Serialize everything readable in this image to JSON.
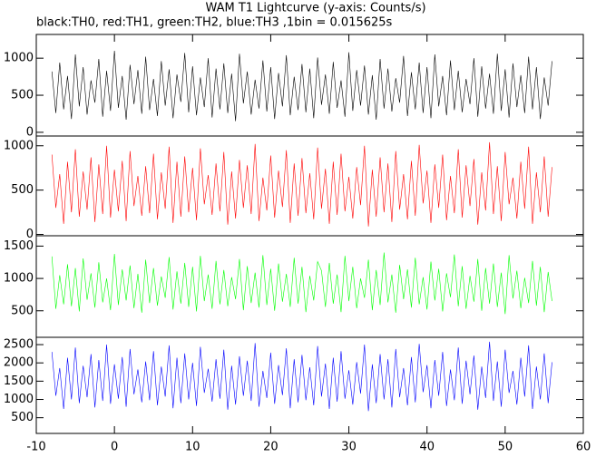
{
  "chart_data": {
    "type": "line",
    "title": "WAM T1 Lightcurve (y-axis: Counts/s)",
    "subtitle": "black:TH0, red:TH1, green:TH2, blue:TH3 ,1bin = 0.015625s",
    "xlim": [
      -10,
      60
    ],
    "xticks": [
      -10,
      0,
      10,
      20,
      30,
      40,
      50,
      60
    ],
    "x": [
      -8,
      -7.5,
      -7,
      -6.5,
      -6,
      -5.5,
      -5,
      -4.5,
      -4,
      -3.5,
      -3,
      -2.5,
      -2,
      -1.5,
      -1,
      -0.5,
      0,
      0.5,
      1,
      1.5,
      2,
      2.5,
      3,
      3.5,
      4,
      4.5,
      5,
      5.5,
      6,
      6.5,
      7,
      7.5,
      8,
      8.5,
      9,
      9.5,
      10,
      10.5,
      11,
      11.5,
      12,
      12.5,
      13,
      13.5,
      14,
      14.5,
      15,
      15.5,
      16,
      16.5,
      17,
      17.5,
      18,
      18.5,
      19,
      19.5,
      20,
      20.5,
      21,
      21.5,
      22,
      22.5,
      23,
      23.5,
      24,
      24.5,
      25,
      25.5,
      26,
      26.5,
      27,
      27.5,
      28,
      28.5,
      29,
      29.5,
      30,
      30.5,
      31,
      31.5,
      32,
      32.5,
      33,
      33.5,
      34,
      34.5,
      35,
      35.5,
      36,
      36.5,
      37,
      37.5,
      38,
      38.5,
      39,
      39.5,
      40,
      40.5,
      41,
      41.5,
      42,
      42.5,
      43,
      43.5,
      44,
      44.5,
      45,
      45.5,
      46,
      46.5,
      47,
      47.5,
      48,
      48.5,
      49,
      49.5,
      50,
      50.5,
      51,
      51.5,
      52,
      52.5,
      53,
      53.5,
      54,
      54.5,
      55,
      55.5,
      56
    ],
    "panels": [
      {
        "color": "#000000",
        "ylim": [
          -50,
          1320
        ],
        "yticks": [
          0,
          500,
          1000
        ],
        "values": [
          820,
          260,
          940,
          310,
          760,
          180,
          1050,
          350,
          880,
          240,
          700,
          400,
          990,
          210,
          830,
          290,
          1100,
          330,
          760,
          170,
          910,
          380,
          840,
          250,
          1020,
          300,
          720,
          220,
          960,
          360,
          850,
          190,
          780,
          410,
          1070,
          270,
          890,
          230,
          740,
          340,
          1000,
          200,
          860,
          310,
          930,
          260,
          790,
          150,
          1060,
          390,
          820,
          240,
          710,
          320,
          970,
          280,
          880,
          180,
          800,
          350,
          1040,
          230,
          750,
          300,
          920,
          270,
          860,
          190,
          1010,
          370,
          780,
          250,
          950,
          330,
          700,
          210,
          1080,
          290,
          840,
          360,
          900,
          240,
          770,
          170,
          990,
          320,
          860,
          280,
          730,
          400,
          1030,
          220,
          810,
          310,
          940,
          260,
          880,
          190,
          1050,
          350,
          760,
          230,
          970,
          300,
          830,
          270,
          720,
          380,
          1000,
          210,
          890,
          320,
          790,
          250,
          1060,
          290,
          850,
          200,
          930,
          340,
          770,
          260,
          1020,
          310,
          880,
          180,
          740,
          360,
          960
        ]
      },
      {
        "color": "#ff0000",
        "ylim": [
          -15,
          1110
        ],
        "yticks": [
          0,
          500,
          1000
        ],
        "values": [
          900,
          300,
          680,
          120,
          820,
          250,
          960,
          200,
          710,
          280,
          870,
          140,
          790,
          230,
          1000,
          190,
          730,
          260,
          830,
          150,
          940,
          320,
          660,
          210,
          770,
          240,
          910,
          170,
          700,
          290,
          990,
          130,
          820,
          200,
          880,
          250,
          750,
          160,
          970,
          340,
          670,
          220,
          800,
          260,
          930,
          110,
          710,
          180,
          840,
          300,
          780,
          230,
          1020,
          150,
          640,
          270,
          890,
          190,
          720,
          310,
          950,
          130,
          800,
          210,
          860,
          240,
          690,
          170,
          980,
          290,
          740,
          120,
          820,
          220,
          910,
          260,
          650,
          180,
          760,
          330,
          1000,
          90,
          730,
          200,
          870,
          250,
          800,
          140,
          940,
          280,
          680,
          170,
          830,
          210,
          1010,
          350,
          720,
          130,
          790,
          300,
          900,
          160,
          660,
          240,
          960,
          190,
          780,
          320,
          850,
          110,
          700,
          270,
          1040,
          230,
          770,
          150,
          930,
          340,
          640,
          180,
          820,
          290,
          990,
          120,
          700,
          250,
          880,
          200,
          760
        ]
      },
      {
        "color": "#00ff00",
        "ylim": [
          90,
          1660
        ],
        "yticks": [
          500,
          1000,
          1500
        ],
        "values": [
          1340,
          530,
          1050,
          600,
          1220,
          570,
          1160,
          490,
          1310,
          670,
          1080,
          550,
          1250,
          630,
          1000,
          510,
          1380,
          590,
          1140,
          660,
          1200,
          540,
          1070,
          470,
          1290,
          620,
          1160,
          580,
          1030,
          700,
          1330,
          520,
          1110,
          610,
          1240,
          560,
          1180,
          490,
          1350,
          650,
          1060,
          530,
          1270,
          600,
          1130,
          570,
          1020,
          680,
          1300,
          510,
          1190,
          620,
          1090,
          550,
          1360,
          590,
          1150,
          500,
          1230,
          640,
          1070,
          560,
          1320,
          610,
          1180,
          480,
          1040,
          660,
          1260,
          1120,
          560,
          1240,
          610,
          1060,
          480,
          1350,
          650,
          1180,
          540,
          1000,
          700,
          1290,
          510,
          1130,
          590,
          1400,
          630,
          1060,
          470,
          1210,
          680,
          1140,
          550,
          1320,
          600,
          1020,
          520,
          1260,
          660,
          1150,
          490,
          1080,
          710,
          1370,
          570,
          1190,
          530,
          1040,
          640,
          1300,
          500,
          1160,
          610,
          1230,
          560,
          1090,
          450,
          1360,
          690,
          1120,
          540,
          1010,
          620,
          1270,
          580,
          1180,
          480,
          1100,
          650
        ]
      },
      {
        "color": "#0000ff",
        "ylim": [
          70,
          2700
        ],
        "yticks": [
          500,
          1000,
          1500,
          2000,
          2500
        ],
        "values": [
          2300,
          1100,
          1860,
          740,
          2140,
          1000,
          2420,
          900,
          1920,
          1060,
          2240,
          780,
          2080,
          960,
          2500,
          880,
          1960,
          1020,
          2160,
          800,
          2380,
          1140,
          1820,
          920,
          2040,
          980,
          2320,
          840,
          1900,
          1080,
          2480,
          760,
          2140,
          900,
          2260,
          1000,
          2000,
          820,
          2440,
          1180,
          1840,
          940,
          2100,
          1020,
          2360,
          720,
          1920,
          860,
          2180,
          1100,
          2060,
          960,
          2540,
          800,
          1780,
          1040,
          2280,
          880,
          1940,
          1120,
          2400,
          760,
          2100,
          920,
          2220,
          980,
          1880,
          840,
          2460,
          1080,
          1980,
          740,
          2140,
          940,
          2320,
          1020,
          1800,
          860,
          2020,
          1160,
          2500,
          680,
          1960,
          900,
          2240,
          1000,
          2100,
          780,
          2380,
          1060,
          1860,
          840,
          2160,
          920,
          2520,
          1200,
          1940,
          760,
          2080,
          1100,
          2300,
          820,
          1820,
          980,
          2420,
          880,
          2060,
          1140,
          2200,
          720,
          1900,
          1040,
          2580,
          960,
          2040,
          800,
          2360,
          1180,
          1780,
          860,
          2140,
          1080,
          2480,
          740,
          1900,
          1000,
          2260,
          900,
          2020
        ]
      }
    ]
  }
}
